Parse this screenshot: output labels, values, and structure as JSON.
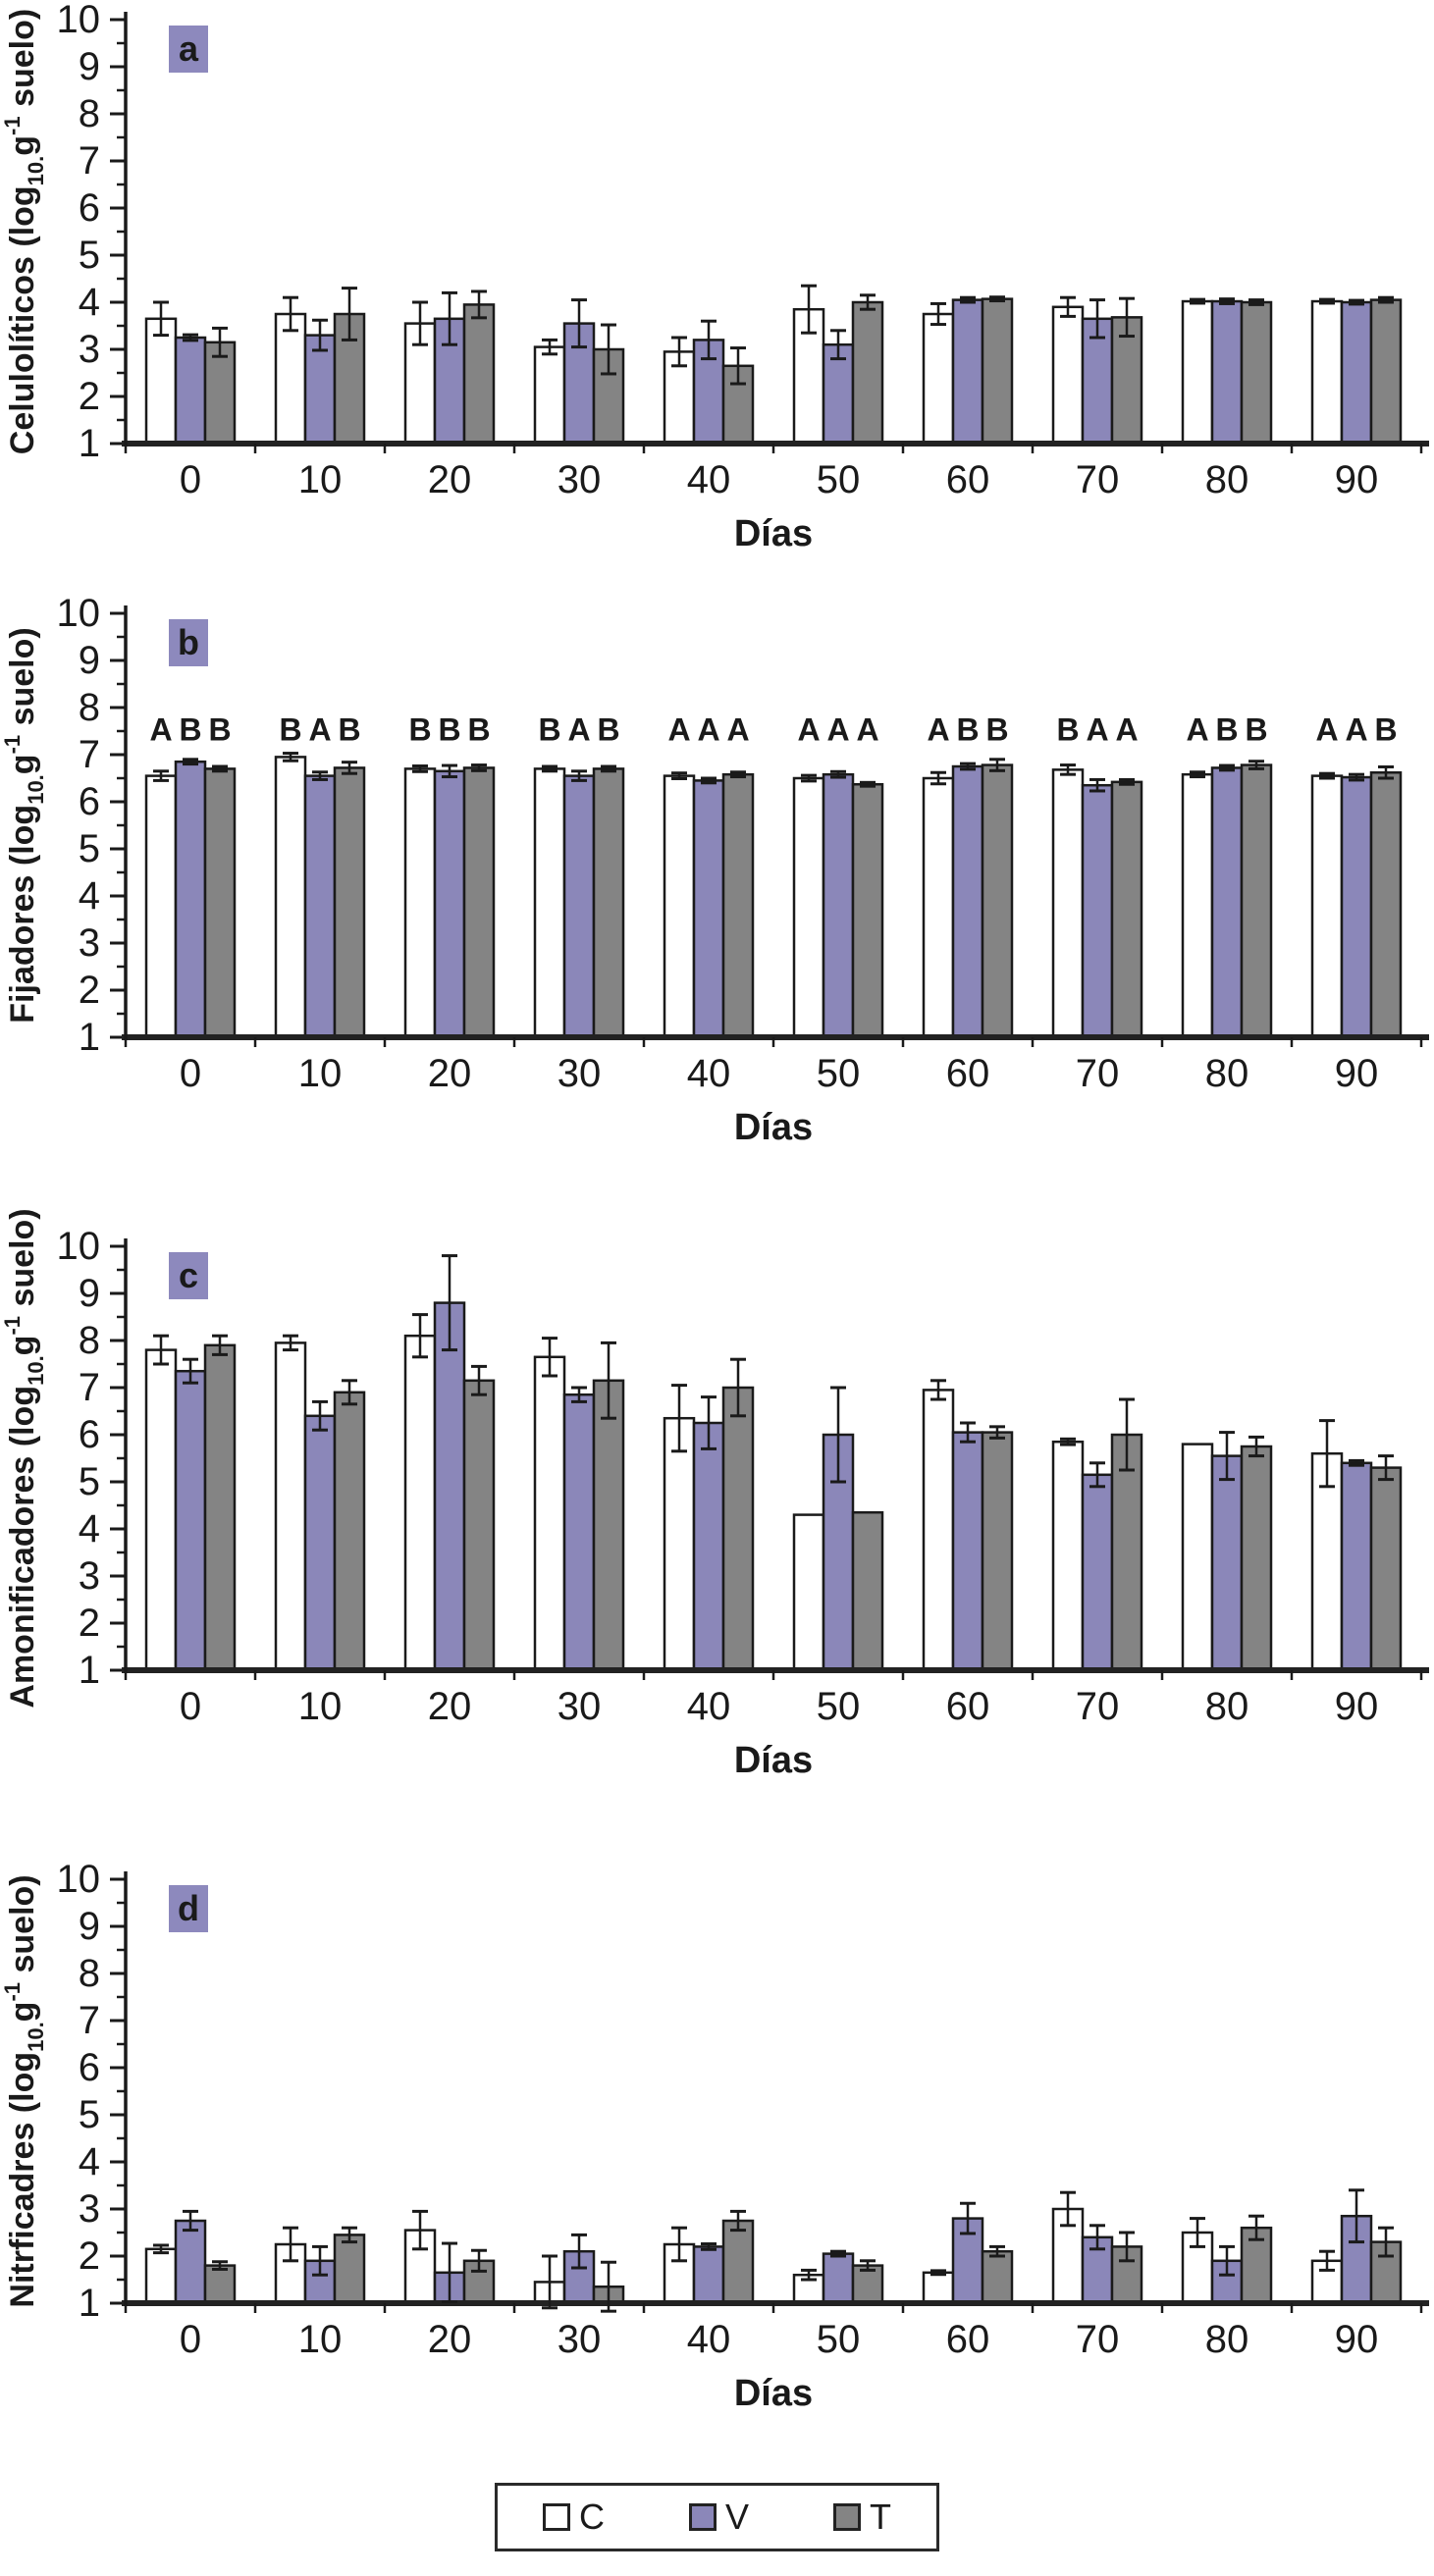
{
  "figure": {
    "background": "#ffffff",
    "text_color": "#1a1a1a",
    "x_axis_label": "Días",
    "y_axis_range": [
      1,
      10
    ],
    "x_categories": [
      0,
      10,
      20,
      30,
      40,
      50,
      60,
      70,
      80,
      90
    ]
  },
  "colors": {
    "C": "#ffffff",
    "V": "#8b87b9",
    "T": "#848484",
    "badge": "#8d89bd",
    "stroke": "#1a1a1a"
  },
  "legend": {
    "items": [
      {
        "label": "C",
        "color": "#ffffff"
      },
      {
        "label": "V",
        "color": "#8b87b9"
      },
      {
        "label": "T",
        "color": "#848484"
      }
    ]
  },
  "chart_data": [
    {
      "type": "bar",
      "panel": "a",
      "ylabel": "Celulolíticos (log10.g-1 suelo)",
      "ylabel_segments": [
        {
          "t": "Celulolíticos (log"
        },
        {
          "t": "10.",
          "style": "sub"
        },
        {
          "t": "g"
        },
        {
          "t": "-1",
          "style": "sup"
        },
        {
          "t": " suelo)"
        }
      ],
      "xlabel": "Días",
      "categories": [
        0,
        10,
        20,
        30,
        40,
        50,
        60,
        70,
        80,
        90
      ],
      "ylim": [
        1,
        10
      ],
      "yticks": [
        1,
        2,
        3,
        4,
        5,
        6,
        7,
        8,
        9,
        10
      ],
      "series": [
        {
          "name": "C",
          "values": [
            3.65,
            3.75,
            3.55,
            3.05,
            2.95,
            3.85,
            3.75,
            3.9,
            4.02,
            4.02
          ],
          "errors": [
            0.35,
            0.35,
            0.45,
            0.15,
            0.3,
            0.5,
            0.22,
            0.2,
            0.04,
            0.04
          ]
        },
        {
          "name": "V",
          "values": [
            3.25,
            3.3,
            3.65,
            3.55,
            3.2,
            3.1,
            4.05,
            3.65,
            4.02,
            4.0
          ],
          "errors": [
            0.06,
            0.32,
            0.55,
            0.5,
            0.4,
            0.3,
            0.05,
            0.4,
            0.05,
            0.04
          ]
        },
        {
          "name": "T",
          "values": [
            3.15,
            3.75,
            3.95,
            3.0,
            2.65,
            4.0,
            4.07,
            3.68,
            4.0,
            4.05
          ],
          "errors": [
            0.3,
            0.55,
            0.28,
            0.52,
            0.38,
            0.15,
            0.04,
            0.4,
            0.05,
            0.05
          ]
        }
      ]
    },
    {
      "type": "bar",
      "panel": "b",
      "ylabel": "Fijadores (log10.g-1 suelo)",
      "ylabel_segments": [
        {
          "t": "Fijadores (log"
        },
        {
          "t": "10.",
          "style": "sub"
        },
        {
          "t": "g"
        },
        {
          "t": "-1",
          "style": "sup"
        },
        {
          "t": " suelo)"
        }
      ],
      "xlabel": "Días",
      "categories": [
        0,
        10,
        20,
        30,
        40,
        50,
        60,
        70,
        80,
        90
      ],
      "ylim": [
        1,
        10
      ],
      "yticks": [
        1,
        2,
        3,
        4,
        5,
        6,
        7,
        8,
        9,
        10
      ],
      "letters": [
        [
          "A",
          "B",
          "B"
        ],
        [
          "B",
          "A",
          "B"
        ],
        [
          "B",
          "B",
          "B"
        ],
        [
          "B",
          "A",
          "B"
        ],
        [
          "A",
          "A",
          "A"
        ],
        [
          "A",
          "A",
          "A"
        ],
        [
          "A",
          "B",
          "B"
        ],
        [
          "B",
          "A",
          "A"
        ],
        [
          "A",
          "B",
          "B"
        ],
        [
          "A",
          "A",
          "B"
        ]
      ],
      "series": [
        {
          "name": "C",
          "values": [
            6.55,
            6.95,
            6.7,
            6.7,
            6.55,
            6.5,
            6.5,
            6.68,
            6.58,
            6.55
          ],
          "errors": [
            0.1,
            0.08,
            0.06,
            0.05,
            0.06,
            0.06,
            0.12,
            0.1,
            0.05,
            0.05
          ]
        },
        {
          "name": "V",
          "values": [
            6.85,
            6.55,
            6.65,
            6.55,
            6.45,
            6.58,
            6.75,
            6.35,
            6.72,
            6.52
          ],
          "errors": [
            0.05,
            0.08,
            0.12,
            0.1,
            0.05,
            0.06,
            0.06,
            0.12,
            0.05,
            0.06
          ]
        },
        {
          "name": "T",
          "values": [
            6.7,
            6.72,
            6.72,
            6.7,
            6.58,
            6.37,
            6.78,
            6.42,
            6.78,
            6.62
          ],
          "errors": [
            0.05,
            0.12,
            0.06,
            0.05,
            0.05,
            0.04,
            0.12,
            0.05,
            0.08,
            0.12
          ]
        }
      ]
    },
    {
      "type": "bar",
      "panel": "c",
      "ylabel": "Amonificadores (log10.g-1 suelo)",
      "ylabel_segments": [
        {
          "t": "Amonificadores (log"
        },
        {
          "t": "10.",
          "style": "sub"
        },
        {
          "t": "g"
        },
        {
          "t": "-1",
          "style": "sup"
        },
        {
          "t": " suelo)"
        }
      ],
      "xlabel": "Días",
      "categories": [
        0,
        10,
        20,
        30,
        40,
        50,
        60,
        70,
        80,
        90
      ],
      "ylim": [
        1,
        10
      ],
      "yticks": [
        1,
        2,
        3,
        4,
        5,
        6,
        7,
        8,
        9,
        10
      ],
      "series": [
        {
          "name": "C",
          "values": [
            7.8,
            7.95,
            8.1,
            7.65,
            6.35,
            4.3,
            6.95,
            5.85,
            5.8,
            5.6
          ],
          "errors": [
            0.3,
            0.15,
            0.45,
            0.4,
            0.7,
            0,
            0.2,
            0.06,
            0,
            0.7
          ]
        },
        {
          "name": "V",
          "values": [
            7.35,
            6.4,
            8.8,
            6.85,
            6.25,
            6.0,
            6.05,
            5.15,
            5.55,
            5.4
          ],
          "errors": [
            0.25,
            0.3,
            1.0,
            0.15,
            0.55,
            1.0,
            0.2,
            0.25,
            0.5,
            0.05
          ]
        },
        {
          "name": "T",
          "values": [
            7.9,
            6.9,
            7.15,
            7.15,
            7.0,
            4.35,
            6.05,
            6.0,
            5.75,
            5.3
          ],
          "errors": [
            0.2,
            0.25,
            0.3,
            0.8,
            0.6,
            0,
            0.12,
            0.75,
            0.2,
            0.25
          ]
        }
      ]
    },
    {
      "type": "bar",
      "panel": "d",
      "ylabel": "Nitrficadres (log10.g-1 suelo)",
      "ylabel_segments": [
        {
          "t": "Nitrficadres (log"
        },
        {
          "t": "10.",
          "style": "sub"
        },
        {
          "t": "g"
        },
        {
          "t": "-1",
          "style": "sup"
        },
        {
          "t": " suelo)"
        }
      ],
      "xlabel": "Días",
      "categories": [
        0,
        10,
        20,
        30,
        40,
        50,
        60,
        70,
        80,
        90
      ],
      "ylim": [
        1,
        10
      ],
      "yticks": [
        1,
        2,
        3,
        4,
        5,
        6,
        7,
        8,
        9,
        10
      ],
      "series": [
        {
          "name": "C",
          "values": [
            2.15,
            2.25,
            2.55,
            1.45,
            2.25,
            1.6,
            1.65,
            3.0,
            2.5,
            1.9
          ],
          "errors": [
            0.08,
            0.35,
            0.4,
            0.55,
            0.35,
            0.1,
            0.04,
            0.35,
            0.3,
            0.2
          ]
        },
        {
          "name": "V",
          "values": [
            2.75,
            1.9,
            1.65,
            2.1,
            2.2,
            2.05,
            2.8,
            2.4,
            1.9,
            2.85
          ],
          "errors": [
            0.2,
            0.3,
            0.62,
            0.35,
            0.06,
            0.05,
            0.32,
            0.25,
            0.3,
            0.55
          ]
        },
        {
          "name": "T",
          "values": [
            1.8,
            2.45,
            1.9,
            1.35,
            2.75,
            1.8,
            2.1,
            2.2,
            2.6,
            2.3
          ],
          "errors": [
            0.08,
            0.15,
            0.22,
            0.52,
            0.2,
            0.1,
            0.1,
            0.3,
            0.25,
            0.3
          ]
        }
      ]
    }
  ]
}
